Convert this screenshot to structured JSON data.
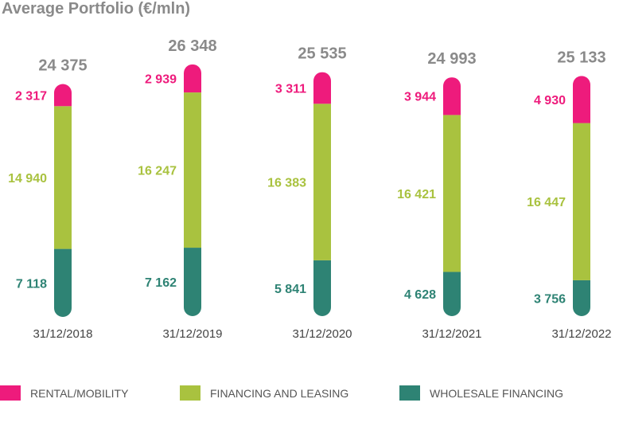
{
  "chart_data": {
    "type": "bar",
    "stacked": true,
    "title": "Average Portfolio (€/mln)",
    "categories": [
      "31/12/2018",
      "31/12/2019",
      "31/12/2020",
      "31/12/2021",
      "31/12/2022"
    ],
    "totals": [
      "24 375",
      "26 348",
      "25 535",
      "24 993",
      "25 133"
    ],
    "total_values": [
      24375,
      26348,
      25535,
      24993,
      25133
    ],
    "series": [
      {
        "name": "WHOLESALE FINANCING",
        "color": "#2e8374",
        "values": [
          7118,
          7162,
          5841,
          4628,
          3756
        ],
        "labels": [
          "7 118",
          "7 162",
          "5 841",
          "4 628",
          "3 756"
        ]
      },
      {
        "name": "FINANCING AND LEASING",
        "color": "#a9c23f",
        "values": [
          14940,
          16247,
          16383,
          16421,
          16447
        ],
        "labels": [
          "14 940",
          "16 247",
          "16 383",
          "16 421",
          "16 447"
        ]
      },
      {
        "name": "RENTAL/MOBILITY",
        "color": "#ee1b7c",
        "values": [
          2317,
          2939,
          3311,
          3944,
          4930
        ],
        "labels": [
          "2 317",
          "2 939",
          "3 311",
          "3 944",
          "4 930"
        ]
      }
    ],
    "legend": [
      "RENTAL/MOBILITY",
      "FINANCING AND LEASING",
      "WHOLESALE FINANCING"
    ],
    "legend_position": "bottom"
  }
}
